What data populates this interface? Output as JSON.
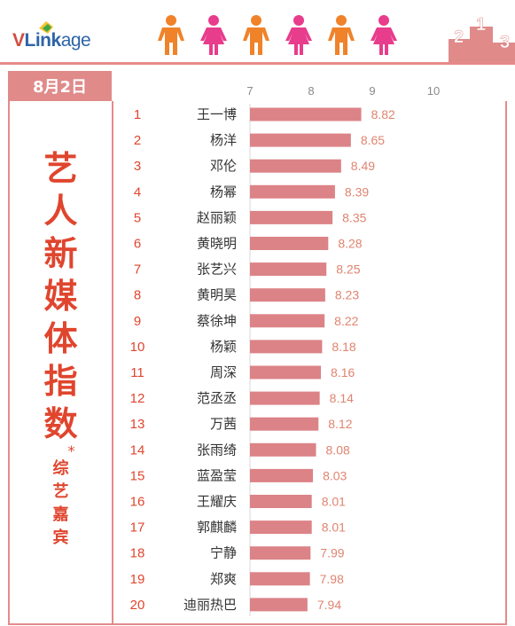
{
  "brand": {
    "logo_v": "V",
    "logo_link": "Link",
    "logo_age": "age",
    "accent": "#e0452e",
    "bar_color": "#dc8387"
  },
  "header": {
    "date": "8月2日",
    "podium_labels": [
      "2",
      "1",
      "3"
    ]
  },
  "side_title": {
    "big": [
      "艺",
      "人",
      "新",
      "媒",
      "体",
      "指",
      "数"
    ],
    "star": "*",
    "small": [
      "综",
      "艺",
      "嘉",
      "宾"
    ]
  },
  "chart_data": {
    "type": "bar",
    "orientation": "horizontal",
    "title": "",
    "xlabel": "",
    "ylabel": "",
    "xlim": [
      7,
      10
    ],
    "ticks": [
      "7",
      "8",
      "9",
      "10"
    ],
    "ranks": [
      "1",
      "2",
      "3",
      "4",
      "5",
      "6",
      "7",
      "8",
      "9",
      "10",
      "11",
      "12",
      "13",
      "14",
      "15",
      "16",
      "17",
      "18",
      "19",
      "20"
    ],
    "categories": [
      "王一博",
      "杨洋",
      "邓伦",
      "杨幂",
      "赵丽颖",
      "黄晓明",
      "张艺兴",
      "黄明昊",
      "蔡徐坤",
      "杨颖",
      "周深",
      "范丞丞",
      "万茜",
      "张雨绮",
      "蓝盈莹",
      "王耀庆",
      "郭麒麟",
      "宁静",
      "郑爽",
      "迪丽热巴"
    ],
    "values": [
      8.82,
      8.65,
      8.49,
      8.39,
      8.35,
      8.28,
      8.25,
      8.23,
      8.22,
      8.18,
      8.16,
      8.14,
      8.12,
      8.08,
      8.03,
      8.01,
      8.01,
      7.99,
      7.98,
      7.94
    ],
    "value_labels": [
      "8.82",
      "8.65",
      "8.49",
      "8.39",
      "8.35",
      "8.28",
      "8.25",
      "8.23",
      "8.22",
      "8.18",
      "8.16",
      "8.14",
      "8.12",
      "8.08",
      "8.03",
      "8.01",
      "8.01",
      "7.99",
      "7.98",
      "7.94"
    ]
  }
}
